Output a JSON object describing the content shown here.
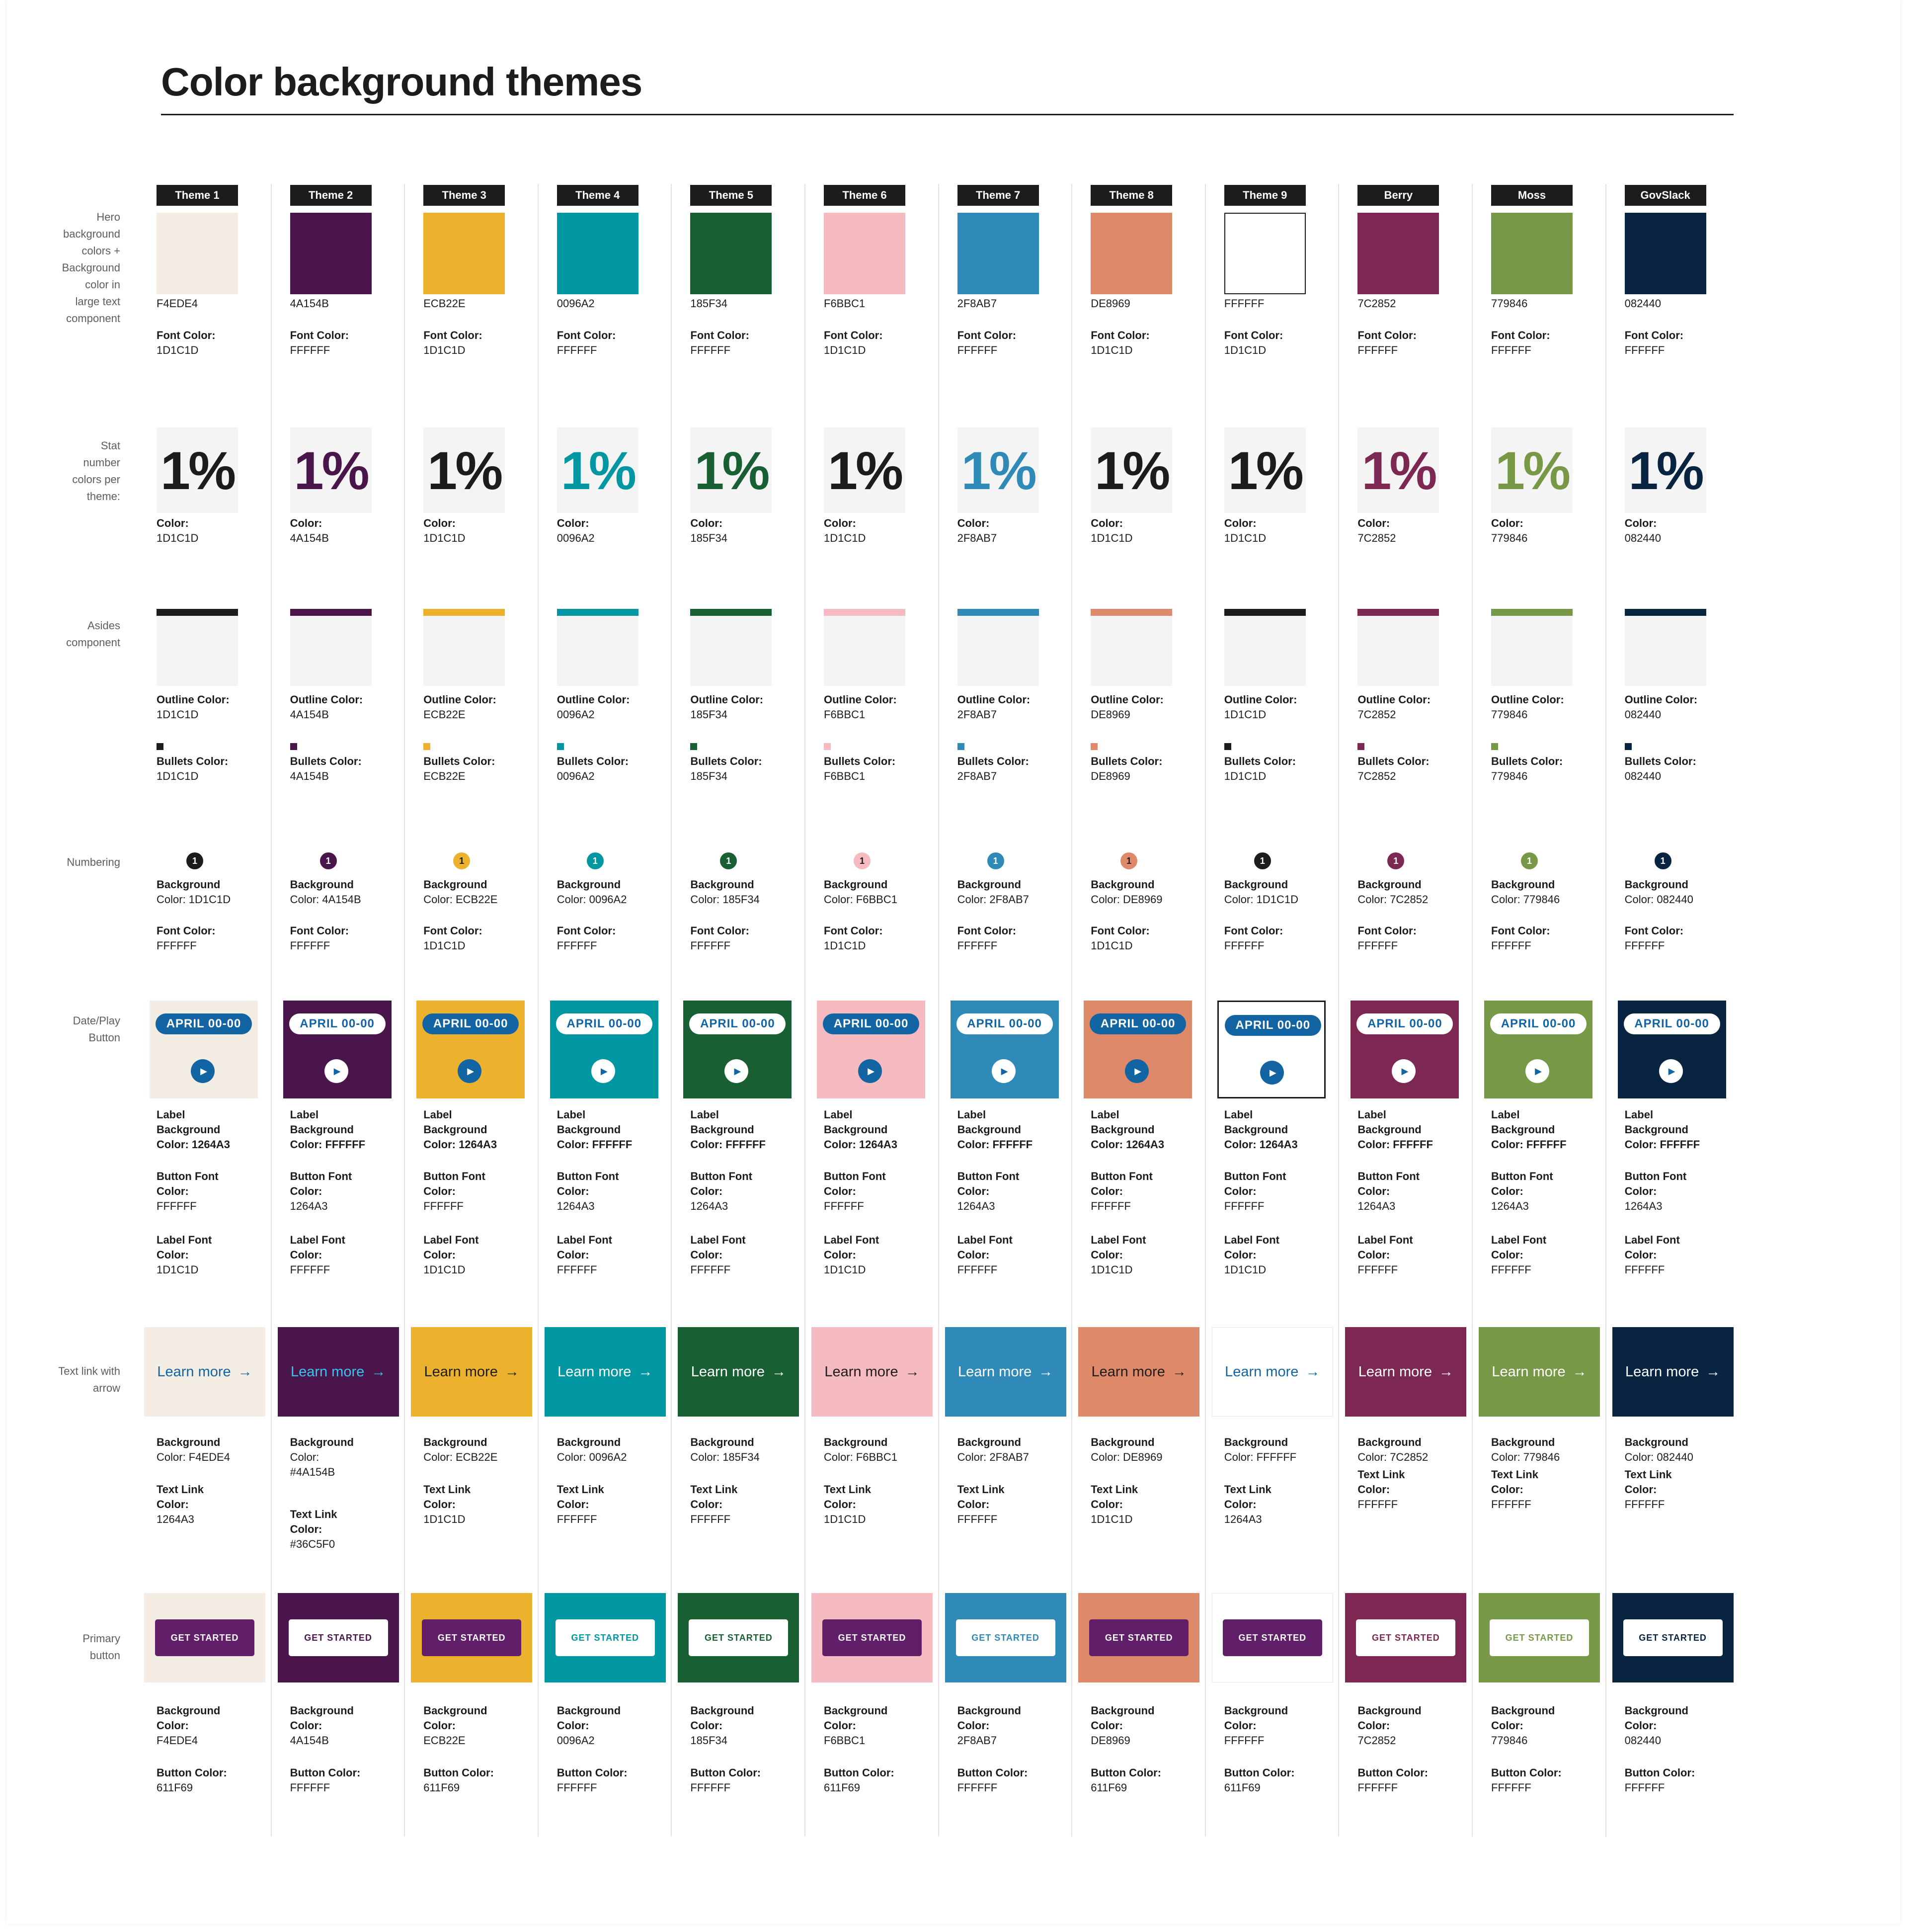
{
  "title": "Color background themes",
  "row_labels": {
    "hero": [
      "Hero",
      "background",
      "colors +",
      "Background",
      "color in",
      "large text",
      "component"
    ],
    "stat": [
      "Stat",
      "number",
      "colors per",
      "theme:"
    ],
    "asides": [
      "Asides",
      "component"
    ],
    "numbering": [
      "Numbering"
    ],
    "dateplay": [
      "Date/Play",
      "Button"
    ],
    "textlink": [
      "Text link with",
      "arrow"
    ],
    "primary": [
      "Primary",
      "button"
    ]
  },
  "common": {
    "font_color_label": "Font Color:",
    "color_label": "Color:",
    "outline_label": "Outline Color:",
    "bullets_label": "Bullets Color:",
    "number_value": "1",
    "stat_value": "1%",
    "date_label": "APRIL 00-00",
    "play_icon": "play-icon",
    "link_text": "Learn more",
    "arrow": "→",
    "cta_label": "GET STARTED",
    "label_bg_lines": [
      "Label",
      "Background"
    ],
    "button_font_lines": [
      "Button Font",
      "Color:"
    ],
    "label_font_lines": [
      "Label Font",
      "Color:"
    ],
    "background_label": "Background",
    "button_color_label": "Button Color:",
    "textlink_label": "Text Link"
  },
  "themes": [
    {
      "name": "Theme 1",
      "hero": "F4EDE4",
      "font": "1D1C1D",
      "stat": "1D1C1D",
      "outline": "1D1C1D",
      "bullets": "1D1C1D",
      "num_bg": "Color: 1D1C1D",
      "num_font": "FFFFFF",
      "dp_bg": "F4EDE4",
      "dp_border": "",
      "dp_label_bg": "1264A3",
      "dp_btn_font": "FFFFFF",
      "dp_label_font": "1D1C1D",
      "tl_bg": "F4EDE4",
      "tl_link": "1264A3",
      "tl_bg_lines": [
        "Background",
        "Color: F4EDE4"
      ],
      "tl_link_lines": [
        "Text Link",
        "Color:",
        "1264A3"
      ],
      "pb_bg": "F4EDE4",
      "pb_btn": "611F69",
      "pb_lines": [
        "Background",
        "Color:",
        "F4EDE4"
      ],
      "pb_btn_lines": [
        "Button Color:",
        "611F69"
      ]
    },
    {
      "name": "Theme 2",
      "hero": "4A154B",
      "font": "FFFFFF",
      "stat": "4A154B",
      "outline": "4A154B",
      "bullets": "4A154B",
      "num_bg": "Color: 4A154B",
      "num_font": "FFFFFF",
      "dp_bg": "4A154B",
      "dp_border": "",
      "dp_label_bg": "FFFFFF",
      "dp_btn_font": "1264A3",
      "dp_label_font": "FFFFFF",
      "tl_bg": "4A154B",
      "tl_link": "36C5F0",
      "tl_bg_lines": [
        "Background",
        "Color:",
        "#4A154B"
      ],
      "tl_link_lines": [
        "Text Link",
        "Color:",
        "#36C5F0"
      ],
      "pb_bg": "4A154B",
      "pb_btn": "FFFFFF",
      "pb_lines": [
        "Background",
        "Color:",
        "4A154B"
      ],
      "pb_btn_lines": [
        "Button Color:",
        "FFFFFF"
      ]
    },
    {
      "name": "Theme 3",
      "hero": "ECB22E",
      "font": "1D1C1D",
      "stat": "1D1C1D",
      "outline": "ECB22E",
      "bullets": "ECB22E",
      "num_bg": "Color: ECB22E",
      "num_font": "1D1C1D",
      "dp_bg": "ECB22E",
      "dp_border": "",
      "dp_label_bg": "1264A3",
      "dp_btn_font": "FFFFFF",
      "dp_label_font": "1D1C1D",
      "tl_bg": "ECB22E",
      "tl_link": "1D1C1D",
      "tl_bg_lines": [
        "Background",
        "Color: ECB22E"
      ],
      "tl_link_lines": [
        "Text Link",
        "Color:",
        "1D1C1D"
      ],
      "pb_bg": "ECB22E",
      "pb_btn": "611F69",
      "pb_lines": [
        "Background",
        "Color:",
        "ECB22E"
      ],
      "pb_btn_lines": [
        "Button Color:",
        "611F69"
      ]
    },
    {
      "name": "Theme 4",
      "hero": "0096A2",
      "font": "FFFFFF",
      "stat": "0096A2",
      "outline": "0096A2",
      "bullets": "0096A2",
      "num_bg": "Color: 0096A2",
      "num_font": "FFFFFF",
      "dp_bg": "0096A2",
      "dp_border": "",
      "dp_label_bg": "FFFFFF",
      "dp_btn_font": "1264A3",
      "dp_label_font": "FFFFFF",
      "tl_bg": "0096A2",
      "tl_link": "FFFFFF",
      "tl_bg_lines": [
        "Background",
        "Color: 0096A2"
      ],
      "tl_link_lines": [
        "Text Link",
        "Color:",
        "FFFFFF"
      ],
      "pb_bg": "0096A2",
      "pb_btn": "FFFFFF",
      "pb_lines": [
        "Background",
        "Color:",
        "0096A2"
      ],
      "pb_btn_lines": [
        "Button Color:",
        "FFFFFF"
      ]
    },
    {
      "name": "Theme 5",
      "hero": "185F34",
      "font": "FFFFFF",
      "stat": "185F34",
      "outline": "185F34",
      "bullets": "185F34",
      "num_bg": "Color: 185F34",
      "num_font": "FFFFFF",
      "dp_bg": "185F34",
      "dp_border": "",
      "dp_label_bg": "FFFFFF",
      "dp_btn_font": "1264A3",
      "dp_label_font": "FFFFFF",
      "tl_bg": "185F34",
      "tl_link": "FFFFFF",
      "tl_bg_lines": [
        "Background",
        "Color: 185F34"
      ],
      "tl_link_lines": [
        "Text Link",
        "Color:",
        "FFFFFF"
      ],
      "pb_bg": "185F34",
      "pb_btn": "FFFFFF",
      "pb_lines": [
        "Background",
        "Color:",
        "185F34"
      ],
      "pb_btn_lines": [
        "Button Color:",
        "FFFFFF"
      ]
    },
    {
      "name": "Theme 6",
      "hero": "F6BBC1",
      "font": "1D1C1D",
      "stat": "1D1C1D",
      "outline": "F6BBC1",
      "bullets": "F6BBC1",
      "num_bg": "Color: F6BBC1",
      "num_font": "1D1C1D",
      "dp_bg": "F6BBC1",
      "dp_border": "",
      "dp_label_bg": "1264A3",
      "dp_btn_font": "FFFFFF",
      "dp_label_font": "1D1C1D",
      "tl_bg": "F6BBC1",
      "tl_link": "1D1C1D",
      "tl_bg_lines": [
        "Background",
        "Color: F6BBC1"
      ],
      "tl_link_lines": [
        "Text Link",
        "Color:",
        "1D1C1D"
      ],
      "pb_bg": "F6BBC1",
      "pb_btn": "611F69",
      "pb_lines": [
        "Background",
        "Color:",
        "F6BBC1"
      ],
      "pb_btn_lines": [
        "Button Color:",
        "611F69"
      ]
    },
    {
      "name": "Theme 7",
      "hero": "2F8AB7",
      "font": "FFFFFF",
      "stat": "2F8AB7",
      "outline": "2F8AB7",
      "bullets": "2F8AB7",
      "num_bg": "Color: 2F8AB7",
      "num_font": "FFFFFF",
      "dp_bg": "2F8AB7",
      "dp_border": "",
      "dp_label_bg": "FFFFFF",
      "dp_btn_font": "1264A3",
      "dp_label_font": "FFFFFF",
      "tl_bg": "2F8AB7",
      "tl_link": "FFFFFF",
      "tl_bg_lines": [
        "Background",
        "Color: 2F8AB7"
      ],
      "tl_link_lines": [
        "Text Link",
        "Color:",
        "FFFFFF"
      ],
      "pb_bg": "2F8AB7",
      "pb_btn": "FFFFFF",
      "pb_lines": [
        "Background",
        "Color:",
        "2F8AB7"
      ],
      "pb_btn_lines": [
        "Button Color:",
        "FFFFFF"
      ]
    },
    {
      "name": "Theme 8",
      "hero": "DE8969",
      "font": "1D1C1D",
      "stat": "1D1C1D",
      "outline": "DE8969",
      "bullets": "DE8969",
      "num_bg": "Color: DE8969",
      "num_font": "1D1C1D",
      "dp_bg": "DE8969",
      "dp_border": "",
      "dp_label_bg": "1264A3",
      "dp_btn_font": "FFFFFF",
      "dp_label_font": "1D1C1D",
      "tl_bg": "DE8969",
      "tl_link": "1D1C1D",
      "tl_bg_lines": [
        "Background",
        "Color: DE8969"
      ],
      "tl_link_lines": [
        "Text Link",
        "Color:",
        "1D1C1D"
      ],
      "pb_bg": "DE8969",
      "pb_btn": "611F69",
      "pb_lines": [
        "Background",
        "Color:",
        "DE8969"
      ],
      "pb_btn_lines": [
        "Button Color:",
        "611F69"
      ]
    },
    {
      "name": "Theme 9",
      "hero": "FFFFFF",
      "font": "1D1C1D",
      "stat": "1D1C1D",
      "outline": "1D1C1D",
      "bullets": "1D1C1D",
      "num_bg": "Color: 1D1C1D",
      "num_font": "FFFFFF",
      "dp_bg": "FFFFFF",
      "dp_border": "1D1C1D",
      "dp_label_bg": "1264A3",
      "dp_btn_font": "FFFFFF",
      "dp_label_font": "1D1C1D",
      "tl_bg": "FFFFFF",
      "tl_link": "1264A3",
      "tl_bg_lines": [
        "Background",
        "Color: FFFFFF"
      ],
      "tl_link_lines": [
        "Text Link",
        "Color:",
        "1264A3"
      ],
      "pb_bg": "FFFFFF",
      "pb_btn": "611F69",
      "pb_lines": [
        "Background",
        "Color:",
        "FFFFFF"
      ],
      "pb_btn_lines": [
        "Button Color:",
        "611F69"
      ]
    },
    {
      "name": "Berry",
      "hero": "7C2852",
      "font": "FFFFFF",
      "stat": "7C2852",
      "outline": "7C2852",
      "bullets": "7C2852",
      "num_bg": "Color: 7C2852",
      "num_font": "FFFFFF",
      "dp_bg": "7C2852",
      "dp_border": "",
      "dp_label_bg": "FFFFFF",
      "dp_btn_font": "1264A3",
      "dp_label_font": "FFFFFF",
      "tl_bg": "7C2852",
      "tl_link": "FFFFFF",
      "tl_bg_lines": [
        "Background",
        "Color: 7C2852"
      ],
      "tl_link_lines": [
        "Text Link",
        "Color:",
        "FFFFFF"
      ],
      "pb_bg": "7C2852",
      "pb_btn": "FFFFFF",
      "pb_lines": [
        "Background",
        "Color:",
        "7C2852"
      ],
      "pb_btn_lines": [
        "Button Color:",
        "FFFFFF"
      ]
    },
    {
      "name": "Moss",
      "hero": "779846",
      "font": "FFFFFF",
      "stat": "779846",
      "outline": "779846",
      "bullets": "779846",
      "num_bg": "Color: 779846",
      "num_font": "FFFFFF",
      "dp_bg": "779846",
      "dp_border": "",
      "dp_label_bg": "FFFFFF",
      "dp_btn_font": "1264A3",
      "dp_label_font": "FFFFFF",
      "tl_bg": "779846",
      "tl_link": "FFFFFF",
      "tl_bg_lines": [
        "Background",
        "Color: 779846"
      ],
      "tl_link_lines": [
        "Text Link",
        "Color:",
        "FFFFFF"
      ],
      "pb_bg": "779846",
      "pb_btn": "FFFFFF",
      "pb_lines": [
        "Background",
        "Color:",
        "779846"
      ],
      "pb_btn_lines": [
        "Button Color:",
        "FFFFFF"
      ]
    },
    {
      "name": "GovSlack",
      "hero": "082440",
      "font": "FFFFFF",
      "stat": "082440",
      "outline": "082440",
      "bullets": "082440",
      "num_bg": "Color: 082440",
      "num_font": "FFFFFF",
      "dp_bg": "082440",
      "dp_border": "",
      "dp_label_bg": "FFFFFF",
      "dp_btn_font": "1264A3",
      "dp_label_font": "FFFFFF",
      "tl_bg": "082440",
      "tl_link": "FFFFFF",
      "tl_bg_lines": [
        "Background",
        "Color: 082440"
      ],
      "tl_link_lines": [
        "Text Link",
        "Color:",
        "FFFFFF"
      ],
      "pb_bg": "082440",
      "pb_btn": "FFFFFF",
      "pb_lines": [
        "Background",
        "Color:",
        "082440"
      ],
      "pb_btn_lines": [
        "Button Color:",
        "FFFFFF"
      ]
    }
  ]
}
